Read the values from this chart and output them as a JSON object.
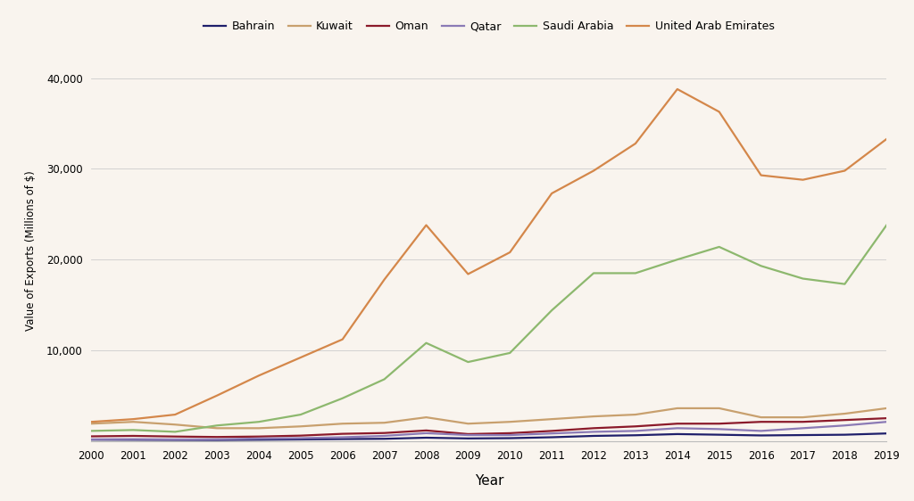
{
  "years": [
    2000,
    2001,
    2002,
    2003,
    2004,
    2005,
    2006,
    2007,
    2008,
    2009,
    2010,
    2011,
    2012,
    2013,
    2014,
    2015,
    2016,
    2017,
    2018,
    2019
  ],
  "series": {
    "Bahrain": [
      130,
      120,
      100,
      90,
      130,
      160,
      200,
      230,
      350,
      270,
      300,
      400,
      550,
      620,
      750,
      680,
      600,
      640,
      680,
      820
    ],
    "Kuwait": [
      1900,
      2100,
      1800,
      1400,
      1400,
      1600,
      1900,
      2000,
      2600,
      1900,
      2100,
      2400,
      2700,
      2900,
      3600,
      3600,
      2600,
      2600,
      3000,
      3600
    ],
    "Oman": [
      500,
      550,
      480,
      430,
      480,
      580,
      780,
      870,
      1150,
      750,
      850,
      1100,
      1400,
      1600,
      1900,
      1900,
      2100,
      2100,
      2300,
      2500
    ],
    "Qatar": [
      170,
      190,
      160,
      170,
      260,
      300,
      400,
      550,
      850,
      640,
      640,
      820,
      1000,
      1100,
      1400,
      1300,
      1100,
      1400,
      1700,
      2100
    ],
    "Saudi Arabia": [
      1100,
      1200,
      1000,
      1700,
      2100,
      2900,
      4700,
      6800,
      10800,
      8700,
      9700,
      14400,
      18500,
      18500,
      20000,
      21400,
      19300,
      17900,
      17300,
      23800
    ],
    "United Arab Emirates": [
      2100,
      2400,
      2900,
      5000,
      7200,
      9200,
      11200,
      17800,
      23800,
      18400,
      20800,
      27300,
      29800,
      32800,
      38800,
      36300,
      29300,
      28800,
      29800,
      33300
    ]
  },
  "colors": {
    "Bahrain": "#1f1f6b",
    "Kuwait": "#c8a06e",
    "Oman": "#8b1a2a",
    "Qatar": "#8b7ab5",
    "Saudi Arabia": "#8db86e",
    "United Arab Emirates": "#d4874a"
  },
  "ylabel": "Value of Exports (Millions of $)",
  "xlabel": "Year",
  "ylim": [
    0,
    42000
  ],
  "yticks": [
    0,
    10000,
    20000,
    30000,
    40000
  ],
  "background_color": "#f9f4ee",
  "grid_color": "#cccccc",
  "line_width": 1.6
}
